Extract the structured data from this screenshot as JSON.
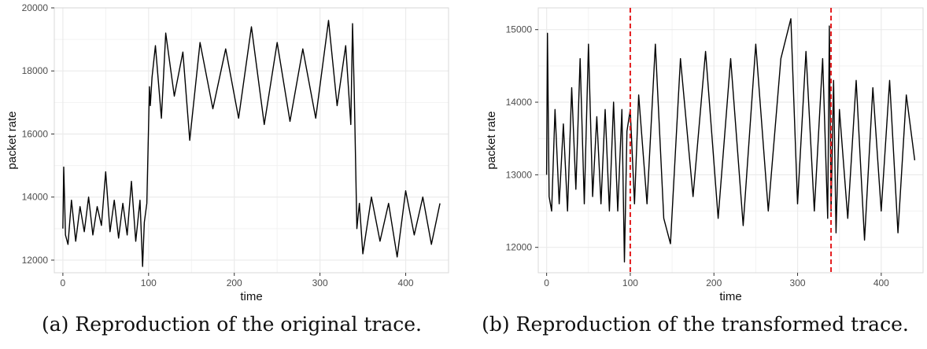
{
  "captions": {
    "a": "(a) Reproduction of the original trace.",
    "b": "(b) Reproduction of the transformed trace."
  },
  "colors": {
    "line": "#000000",
    "changepoint": "#e41a1c",
    "grid": "#ebebeb",
    "panel_border": "#d9d9d9"
  },
  "chart_data": [
    {
      "type": "line",
      "xlabel": "time",
      "ylabel": "packet rate",
      "xlim": [
        -10,
        450
      ],
      "ylim": [
        11600,
        20000
      ],
      "xticks": [
        0,
        100,
        200,
        300,
        400
      ],
      "yticks": [
        12000,
        14000,
        16000,
        18000,
        20000
      ],
      "xtick_labels": [
        "0",
        "100",
        "200",
        "300",
        "400"
      ],
      "ytick_labels": [
        "12000",
        "14000",
        "16000",
        "18000",
        "20000"
      ],
      "grid": true,
      "legend": "none",
      "series": [
        {
          "x": [
            0,
            1,
            3,
            6,
            10,
            15,
            20,
            25,
            30,
            35,
            40,
            45,
            50,
            55,
            60,
            65,
            70,
            75,
            80,
            85,
            90,
            93,
            95,
            98,
            101,
            102,
            104,
            108,
            115,
            120,
            130,
            140,
            148,
            160,
            175,
            190,
            205,
            220,
            235,
            250,
            265,
            280,
            295,
            310,
            320,
            330,
            336,
            338,
            340,
            343,
            346,
            350,
            360,
            370,
            380,
            390,
            400,
            410,
            420,
            430,
            440
          ],
          "y": [
            13000,
            14950,
            12800,
            12500,
            13900,
            12600,
            13700,
            12900,
            14000,
            12800,
            13700,
            13100,
            14800,
            12900,
            13900,
            12700,
            13800,
            12800,
            14500,
            12600,
            13900,
            11800,
            13200,
            13800,
            17500,
            16900,
            17800,
            18800,
            16500,
            19200,
            17200,
            18600,
            15800,
            18900,
            16800,
            18700,
            16500,
            19400,
            16300,
            18900,
            16400,
            18700,
            16500,
            19600,
            16900,
            18800,
            16300,
            19500,
            17300,
            13000,
            13800,
            12200,
            14000,
            12600,
            13800,
            12100,
            14200,
            12800,
            14000,
            12500,
            13800
          ]
        }
      ],
      "vlines": []
    },
    {
      "type": "line",
      "xlabel": "time",
      "ylabel": "packet rate",
      "xlim": [
        -10,
        450
      ],
      "ylim": [
        11650,
        15300
      ],
      "xticks": [
        0,
        100,
        200,
        300,
        400
      ],
      "yticks": [
        12000,
        13000,
        14000,
        15000
      ],
      "xtick_labels": [
        "0",
        "100",
        "200",
        "300",
        "400"
      ],
      "ytick_labels": [
        "12000",
        "13000",
        "14000",
        "15000"
      ],
      "grid": true,
      "legend": "none",
      "series": [
        {
          "x": [
            0,
            1,
            3,
            6,
            10,
            15,
            20,
            25,
            30,
            35,
            40,
            45,
            50,
            55,
            60,
            65,
            70,
            75,
            80,
            85,
            90,
            93,
            96,
            100,
            105,
            110,
            120,
            130,
            140,
            148,
            160,
            175,
            190,
            205,
            220,
            235,
            250,
            265,
            280,
            292,
            300,
            310,
            320,
            330,
            336,
            338,
            340,
            343,
            346,
            350,
            360,
            370,
            380,
            390,
            400,
            410,
            420,
            430,
            440
          ],
          "y": [
            13000,
            14950,
            12700,
            12500,
            13900,
            12600,
            13700,
            12500,
            14200,
            12800,
            14600,
            12600,
            14800,
            12700,
            13800,
            12600,
            13900,
            12500,
            14000,
            12500,
            13900,
            11800,
            13600,
            13900,
            12600,
            14100,
            12600,
            14800,
            12400,
            12050,
            14600,
            12700,
            14700,
            12400,
            14600,
            12300,
            14800,
            12500,
            14600,
            15150,
            12600,
            14700,
            12500,
            14600,
            12400,
            15050,
            12500,
            14300,
            12200,
            13900,
            12400,
            14300,
            12100,
            14200,
            12500,
            14300,
            12200,
            14100,
            13200
          ]
        }
      ],
      "vlines": [
        100,
        340
      ]
    }
  ]
}
